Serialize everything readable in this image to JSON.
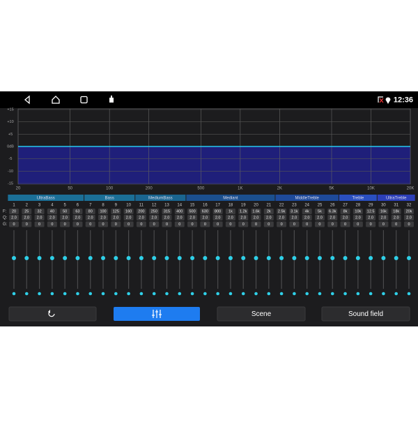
{
  "status_bar": {
    "time": "12:36"
  },
  "graph": {
    "xlim": [
      20,
      20000
    ],
    "ylim": [
      -15,
      15
    ],
    "yticks": [
      {
        "value": 15,
        "label": "+15"
      },
      {
        "value": 10,
        "label": "+10"
      },
      {
        "value": 5,
        "label": "+5"
      },
      {
        "value": 0,
        "label": "0dB"
      },
      {
        "value": -5,
        "label": "-5"
      },
      {
        "value": -10,
        "label": "-10"
      },
      {
        "value": -15,
        "label": "-15"
      }
    ],
    "xticks": [
      20,
      50,
      100,
      200,
      500,
      {
        "value": 1000,
        "label": "1K"
      },
      {
        "value": 2000,
        "label": "2K"
      },
      {
        "value": 5000,
        "label": "5K"
      },
      {
        "value": 10000,
        "label": "10K"
      },
      {
        "value": 20000,
        "label": "20K"
      }
    ]
  },
  "row_labels": {
    "f": "F:",
    "q": "Q:",
    "g": "G:"
  },
  "groups": [
    {
      "name": "UltraBass",
      "color": "#1b6f97",
      "bands": [
        {
          "n": 1,
          "f": "20",
          "q": "2.0",
          "g": 0
        },
        {
          "n": 2,
          "f": "25",
          "q": "2.0",
          "g": 0
        },
        {
          "n": 3,
          "f": "32",
          "q": "2.0",
          "g": 0
        },
        {
          "n": 4,
          "f": "40",
          "q": "2.0",
          "g": 0
        },
        {
          "n": 5,
          "f": "50",
          "q": "2.0",
          "g": 0
        },
        {
          "n": 6,
          "f": "63",
          "q": "2.0",
          "g": 0
        }
      ]
    },
    {
      "name": "Bass",
      "color": "#1b6f97",
      "bands": [
        {
          "n": 7,
          "f": "80",
          "q": "2.0",
          "g": 0
        },
        {
          "n": 8,
          "f": "100",
          "q": "2.0",
          "g": 0
        },
        {
          "n": 9,
          "f": "125",
          "q": "2.0",
          "g": 0
        },
        {
          "n": 10,
          "f": "160",
          "q": "2.0",
          "g": 0
        }
      ]
    },
    {
      "name": "MediumBass",
      "color": "#1a6590",
      "bands": [
        {
          "n": 11,
          "f": "200",
          "q": "2.0",
          "g": 0
        },
        {
          "n": 12,
          "f": "250",
          "q": "2.0",
          "g": 0
        },
        {
          "n": 13,
          "f": "315",
          "q": "2.0",
          "g": 0
        },
        {
          "n": 14,
          "f": "400",
          "q": "2.0",
          "g": 0
        }
      ]
    },
    {
      "name": "Mediant",
      "color": "#1b4f8e",
      "bands": [
        {
          "n": 15,
          "f": "500",
          "q": "2.0",
          "g": 0
        },
        {
          "n": 16,
          "f": "630",
          "q": "2.0",
          "g": 0
        },
        {
          "n": 17,
          "f": "800",
          "q": "2.0",
          "g": 0
        },
        {
          "n": 18,
          "f": "1k",
          "q": "2.0",
          "g": 0
        },
        {
          "n": 19,
          "f": "1.2k",
          "q": "2.0",
          "g": 0
        },
        {
          "n": 20,
          "f": "1.6k",
          "q": "2.0",
          "g": 0
        },
        {
          "n": 21,
          "f": "2k",
          "q": "2.0",
          "g": 0
        }
      ]
    },
    {
      "name": "MiddleTreble",
      "color": "#1e4a9a",
      "bands": [
        {
          "n": 22,
          "f": "2.5k",
          "q": "2.0",
          "g": 0
        },
        {
          "n": 23,
          "f": "3.1k",
          "q": "2.0",
          "g": 0
        },
        {
          "n": 24,
          "f": "4k",
          "q": "2.0",
          "g": 0
        },
        {
          "n": 25,
          "f": "5k",
          "q": "2.0",
          "g": 0
        },
        {
          "n": 26,
          "f": "6.3k",
          "q": "2.0",
          "g": 0
        }
      ]
    },
    {
      "name": "Treble",
      "color": "#2a4fc0",
      "bands": [
        {
          "n": 27,
          "f": "8k",
          "q": "2.0",
          "g": 0
        },
        {
          "n": 28,
          "f": "10k",
          "q": "2.0",
          "g": 0
        },
        {
          "n": 29,
          "f": "12.5",
          "q": "2.0",
          "g": 0
        }
      ]
    },
    {
      "name": "UltraTreble",
      "color": "#2c3fb8",
      "bands": [
        {
          "n": 30,
          "f": "16k",
          "q": "2.0",
          "g": 0
        },
        {
          "n": 31,
          "f": "18k",
          "q": "2.0",
          "g": 0
        },
        {
          "n": 32,
          "f": "20k",
          "q": "2.0",
          "g": 0
        }
      ]
    }
  ],
  "buttons": {
    "scene": "Scene",
    "sound_field": "Sound field"
  }
}
